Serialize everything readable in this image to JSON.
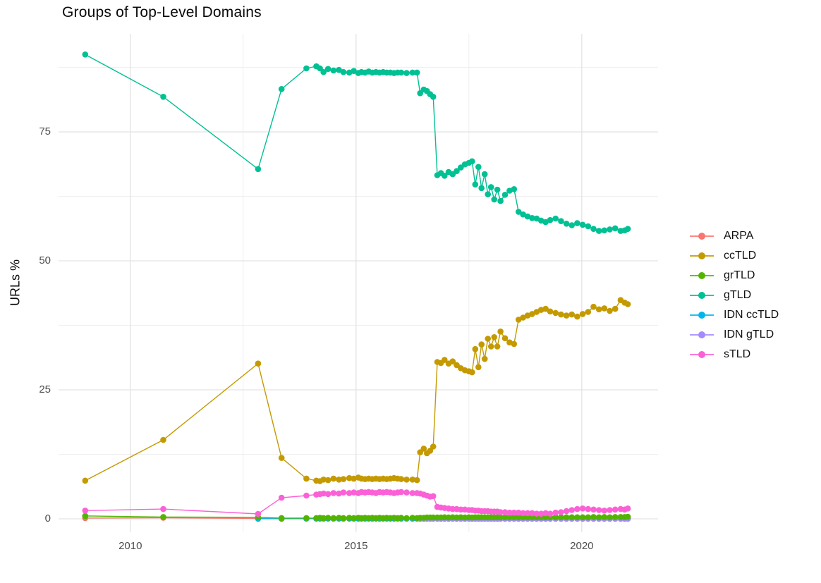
{
  "title": "Groups of Top-Level Domains",
  "y_axis_label": "URLs %",
  "chart_data": {
    "type": "line",
    "title": "Groups of Top-Level Domains",
    "xlabel": "",
    "ylabel": "URLs %",
    "x_unit": "year (decimal)",
    "grid": true,
    "legend_position": "right",
    "xlim": [
      2008.41,
      2021.69
    ],
    "ylim": [
      -2.6,
      94.0
    ],
    "x_ticks": [
      2010,
      2015,
      2020
    ],
    "x_minor_ticks": [
      2012.5,
      2017.5
    ],
    "y_ticks": [
      0,
      25,
      50,
      75
    ],
    "y_minor_ticks": [
      12.5,
      37.5,
      62.5,
      87.5
    ],
    "x": [
      2009.0,
      2010.73,
      2012.83,
      2013.35,
      2013.9,
      2014.12,
      2014.2,
      2014.28,
      2014.38,
      2014.5,
      2014.62,
      2014.72,
      2014.85,
      2014.95,
      2015.05,
      2015.12,
      2015.2,
      2015.28,
      2015.36,
      2015.44,
      2015.52,
      2015.6,
      2015.68,
      2015.76,
      2015.84,
      2015.92,
      2016.0,
      2016.12,
      2016.25,
      2016.35,
      2016.42,
      2016.5,
      2016.57,
      2016.64,
      2016.71,
      2016.8,
      2016.88,
      2016.96,
      2017.05,
      2017.14,
      2017.23,
      2017.32,
      2017.41,
      2017.5,
      2017.57,
      2017.64,
      2017.71,
      2017.78,
      2017.85,
      2017.92,
      2017.99,
      2018.06,
      2018.13,
      2018.2,
      2018.3,
      2018.4,
      2018.5,
      2018.6,
      2018.7,
      2018.8,
      2018.9,
      2019.0,
      2019.1,
      2019.2,
      2019.3,
      2019.42,
      2019.54,
      2019.66,
      2019.78,
      2019.9,
      2020.02,
      2020.14,
      2020.26,
      2020.38,
      2020.5,
      2020.62,
      2020.74,
      2020.86,
      2020.95,
      2021.02
    ],
    "series": [
      {
        "name": "ARPA",
        "color": "#F8766D",
        "values": [
          0.15,
          0.2,
          0.08,
          0.05,
          0.05,
          0.05,
          0.05,
          0.05,
          0.05,
          0.05,
          0.05,
          0.05,
          0.05,
          0.05,
          0.05,
          0.05,
          0.05,
          0.05,
          0.05,
          0.05,
          0.05,
          0.05,
          0.05,
          0.05,
          0.05,
          0.05,
          0.05,
          0.05,
          0.05,
          0.05,
          0.05,
          0.05,
          0.05,
          0.05,
          0.05,
          0.05,
          0.05,
          0.05,
          0.05,
          0.05,
          0.05,
          0.05,
          0.05,
          0.05,
          0.05,
          0.05,
          0.05,
          0.05,
          0.05,
          0.05,
          0.05,
          0.05,
          0.05,
          0.05,
          0.05,
          0.05,
          0.05,
          0.05,
          0.05,
          0.05,
          0.05,
          0.05,
          0.05,
          0.05,
          0.05,
          0.05,
          0.05,
          0.05,
          0.05,
          0.05,
          0.05,
          0.05,
          0.05,
          0.05,
          0.05,
          0.05,
          0.05,
          0.05,
          0.05,
          0.05
        ]
      },
      {
        "name": "ccTLD",
        "color": "#C49A00",
        "values": [
          7.4,
          15.3,
          30.1,
          11.8,
          7.8,
          7.4,
          7.3,
          7.6,
          7.5,
          7.8,
          7.6,
          7.7,
          7.9,
          7.8,
          8.0,
          7.8,
          7.7,
          7.8,
          7.7,
          7.8,
          7.7,
          7.8,
          7.7,
          7.8,
          7.9,
          7.8,
          7.7,
          7.6,
          7.6,
          7.5,
          12.9,
          13.6,
          12.7,
          13.2,
          14.0,
          30.4,
          30.2,
          30.8,
          30.1,
          30.5,
          29.8,
          29.2,
          28.8,
          28.6,
          28.4,
          32.9,
          29.4,
          33.8,
          31.0,
          34.9,
          33.4,
          35.2,
          33.4,
          36.3,
          35.0,
          34.2,
          33.9,
          38.6,
          39.0,
          39.4,
          39.7,
          40.1,
          40.5,
          40.7,
          40.2,
          39.9,
          39.6,
          39.4,
          39.6,
          39.2,
          39.7,
          40.1,
          41.1,
          40.6,
          40.8,
          40.3,
          40.7,
          42.4,
          41.9,
          41.6
        ]
      },
      {
        "name": "grTLD",
        "color": "#53B400",
        "values": [
          0.55,
          0.35,
          0.3,
          0.15,
          0.15,
          0.15,
          0.2,
          0.15,
          0.2,
          0.15,
          0.2,
          0.15,
          0.2,
          0.15,
          0.2,
          0.15,
          0.2,
          0.15,
          0.2,
          0.15,
          0.2,
          0.15,
          0.2,
          0.15,
          0.2,
          0.15,
          0.2,
          0.15,
          0.2,
          0.15,
          0.2,
          0.2,
          0.25,
          0.25,
          0.25,
          0.25,
          0.25,
          0.3,
          0.25,
          0.3,
          0.25,
          0.3,
          0.25,
          0.3,
          0.25,
          0.3,
          0.3,
          0.3,
          0.3,
          0.3,
          0.3,
          0.3,
          0.3,
          0.3,
          0.3,
          0.3,
          0.3,
          0.3,
          0.3,
          0.3,
          0.3,
          0.3,
          0.3,
          0.3,
          0.3,
          0.3,
          0.3,
          0.3,
          0.3,
          0.3,
          0.3,
          0.3,
          0.35,
          0.3,
          0.35,
          0.3,
          0.35,
          0.35,
          0.35,
          0.4
        ]
      },
      {
        "name": "gTLD",
        "color": "#00C094",
        "values": [
          90.0,
          81.8,
          67.8,
          83.3,
          87.3,
          87.7,
          87.3,
          86.6,
          87.2,
          86.9,
          87.0,
          86.6,
          86.5,
          86.8,
          86.4,
          86.6,
          86.5,
          86.7,
          86.5,
          86.6,
          86.5,
          86.6,
          86.5,
          86.5,
          86.4,
          86.5,
          86.5,
          86.4,
          86.5,
          86.5,
          82.5,
          83.2,
          82.9,
          82.3,
          81.8,
          66.6,
          67.0,
          66.5,
          67.2,
          66.8,
          67.4,
          68.1,
          68.7,
          69.0,
          69.3,
          64.8,
          68.2,
          64.1,
          66.8,
          62.9,
          64.3,
          61.9,
          63.8,
          61.6,
          62.8,
          63.6,
          63.9,
          59.5,
          59.0,
          58.6,
          58.3,
          58.2,
          57.8,
          57.5,
          57.9,
          58.2,
          57.7,
          57.2,
          56.9,
          57.3,
          57.0,
          56.7,
          56.2,
          55.8,
          55.9,
          56.1,
          56.3,
          55.8,
          55.9,
          56.2
        ]
      },
      {
        "name": "IDN ccTLD",
        "color": "#00B6EB",
        "values": [
          null,
          null,
          0.02,
          0.03,
          0.05,
          0.05,
          0.05,
          0.05,
          0.05,
          0.05,
          0.05,
          0.05,
          0.05,
          0.05,
          0.05,
          0.05,
          0.05,
          0.05,
          0.05,
          0.05,
          0.05,
          0.05,
          0.05,
          0.05,
          0.05,
          0.05,
          0.05,
          0.05,
          0.05,
          0.05,
          0.05,
          0.05,
          0.05,
          0.05,
          0.05,
          0.05,
          0.05,
          0.05,
          0.05,
          0.05,
          0.05,
          0.05,
          0.05,
          0.05,
          0.05,
          0.05,
          0.05,
          0.05,
          0.05,
          0.05,
          0.05,
          0.05,
          0.05,
          0.05,
          0.05,
          0.05,
          0.05,
          0.05,
          0.05,
          0.05,
          0.05,
          0.05,
          0.05,
          0.05,
          0.05,
          0.05,
          0.05,
          0.05,
          0.05,
          0.05,
          0.05,
          0.05,
          0.05,
          0.05,
          0.05,
          0.05,
          0.05,
          0.05,
          0.05,
          0.05
        ]
      },
      {
        "name": "IDN gTLD",
        "color": "#A58AFF",
        "values": [
          null,
          null,
          null,
          null,
          null,
          null,
          null,
          null,
          null,
          null,
          null,
          null,
          null,
          null,
          null,
          null,
          null,
          null,
          null,
          null,
          null,
          null,
          null,
          null,
          null,
          null,
          null,
          null,
          null,
          null,
          0.02,
          0.02,
          0.02,
          0.02,
          0.02,
          0.02,
          0.02,
          0.02,
          0.02,
          0.02,
          0.02,
          0.02,
          0.02,
          0.02,
          0.02,
          0.02,
          0.02,
          0.02,
          0.02,
          0.02,
          0.02,
          0.02,
          0.02,
          0.02,
          0.02,
          0.02,
          0.02,
          0.02,
          0.02,
          0.02,
          0.02,
          0.02,
          0.02,
          0.02,
          0.02,
          0.02,
          0.02,
          0.02,
          0.02,
          0.02,
          0.02,
          0.02,
          0.02,
          0.02,
          0.02,
          0.02,
          0.02,
          0.02,
          0.02,
          0.02
        ]
      },
      {
        "name": "sTLD",
        "color": "#FB61D7",
        "values": [
          1.6,
          1.9,
          0.95,
          4.1,
          4.5,
          4.7,
          4.8,
          4.9,
          4.8,
          5.0,
          4.9,
          5.1,
          5.0,
          5.1,
          5.0,
          5.2,
          5.1,
          5.2,
          5.1,
          5.0,
          5.2,
          5.1,
          5.2,
          5.1,
          5.0,
          5.1,
          5.2,
          5.1,
          5.0,
          5.0,
          4.9,
          4.7,
          4.5,
          4.3,
          4.4,
          2.3,
          2.2,
          2.1,
          2.0,
          1.9,
          1.9,
          1.8,
          1.8,
          1.7,
          1.7,
          1.6,
          1.6,
          1.5,
          1.5,
          1.5,
          1.4,
          1.4,
          1.4,
          1.3,
          1.3,
          1.2,
          1.2,
          1.2,
          1.1,
          1.1,
          1.1,
          1.0,
          1.0,
          1.1,
          1.0,
          1.2,
          1.3,
          1.5,
          1.7,
          1.9,
          2.0,
          1.9,
          1.8,
          1.7,
          1.6,
          1.7,
          1.8,
          1.9,
          1.8,
          2.0
        ]
      }
    ]
  }
}
